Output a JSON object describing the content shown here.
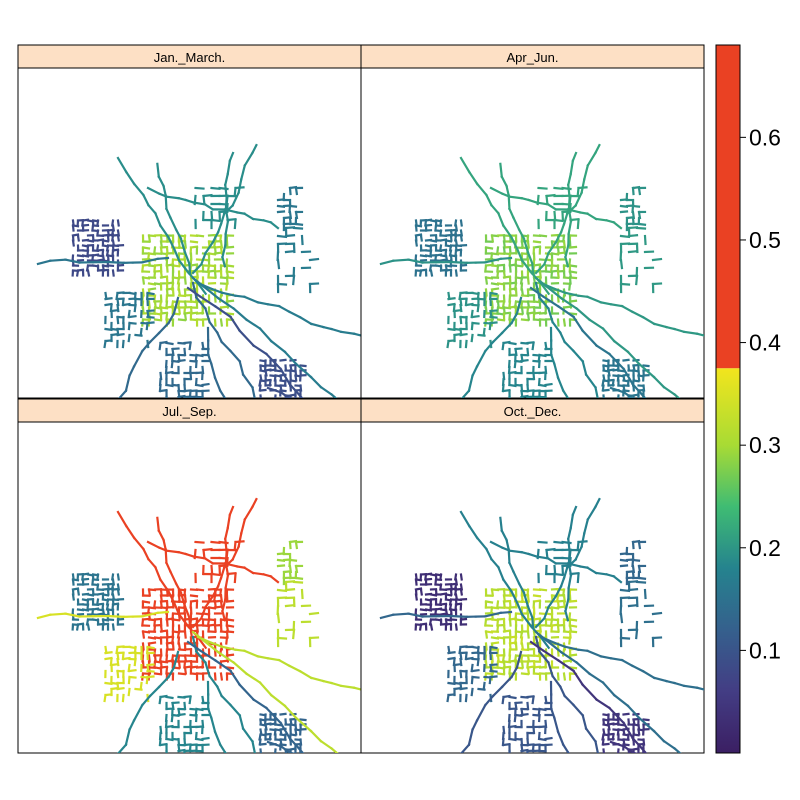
{
  "chart_data": {
    "type": "heatmap",
    "subtype": "network-map-small-multiples",
    "layout": "2x2 panels",
    "panels": [
      {
        "title": "Jan._March.",
        "hotspot_level": 0.3,
        "periphery_level": 0.08
      },
      {
        "title": "Apr_Jun.",
        "hotspot_level": 0.28,
        "periphery_level": 0.15
      },
      {
        "title": "Jul._Sep.",
        "hotspot_level": 0.65,
        "periphery_level": 0.1
      },
      {
        "title": "Oct._Dec.",
        "hotspot_level": 0.32,
        "periphery_level": 0.03
      }
    ],
    "colorbar": {
      "range": [
        0,
        0.69
      ],
      "ticks": [
        0.1,
        0.2,
        0.3,
        0.4,
        0.5,
        0.6
      ],
      "tick_labels": [
        "0.1",
        "0.2",
        "0.3",
        "0.4",
        "0.5",
        "0.6"
      ],
      "gradient_stops": [
        {
          "value": 0.0,
          "color": "#3b1f63"
        },
        {
          "value": 0.06,
          "color": "#433d84"
        },
        {
          "value": 0.12,
          "color": "#35608d"
        },
        {
          "value": 0.18,
          "color": "#25838e"
        },
        {
          "value": 0.24,
          "color": "#3fbc73"
        },
        {
          "value": 0.3,
          "color": "#a8db34"
        },
        {
          "value": 0.375,
          "color": "#f2e51d"
        }
      ],
      "upper_band": {
        "from": 0.375,
        "to": 0.69,
        "color": "#ea4123"
      }
    },
    "strip_color": "#fde0c5",
    "legend_placement": "right"
  }
}
